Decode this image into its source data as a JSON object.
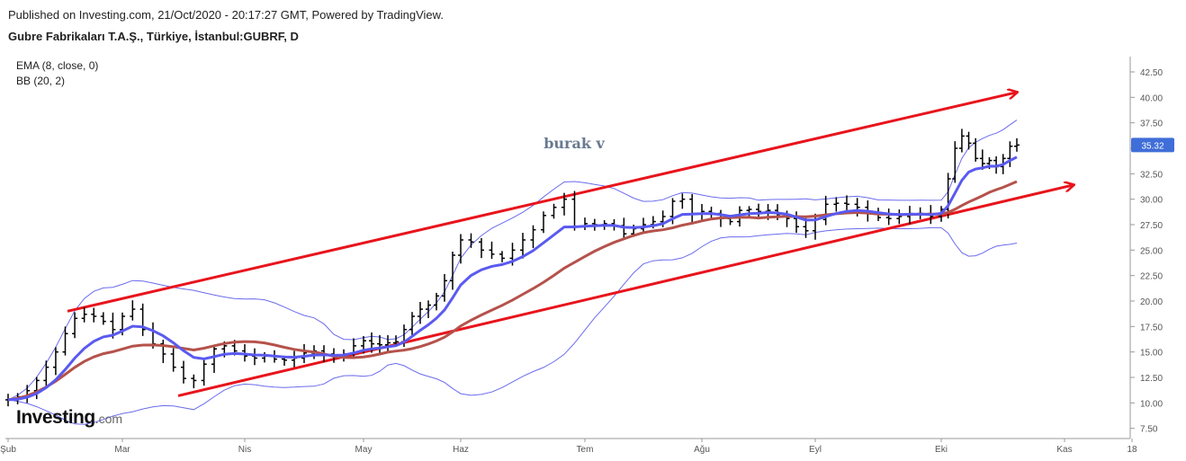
{
  "header": {
    "published": "Published on Investing.com, 21/Oct/2020 - 20:17:27 GMT, Powered by TradingView.",
    "symbol": "Gubre Fabrikaları T.A.Ş., Türkiye, İstanbul:GUBRF, D"
  },
  "indicators": [
    "EMA (8, close, 0)",
    "BB (20, 2)"
  ],
  "logo": {
    "brand": "Investing",
    "domain": ".com"
  },
  "annotation": "burak v",
  "colors": {
    "price": "#000000",
    "ema": "#5a5af0",
    "bb_mid": "#b5524b",
    "bb_band": "#6b6bee",
    "trend": "#e8141c",
    "price_badge": "#3f6ed8",
    "axis_text": "#555555",
    "grid": "#d0d0d0"
  },
  "chart_data": {
    "type": "line",
    "series_kind": "ohlc-daily",
    "y_axis": {
      "ticks": [
        "7.50",
        "10.00",
        "12.50",
        "15.00",
        "17.50",
        "20.00",
        "22.50",
        "25.00",
        "27.50",
        "30.00",
        "32.50",
        "35.00",
        "37.50",
        "40.00",
        "42.50"
      ],
      "ylim": [
        6.5,
        44.0
      ],
      "position": "right"
    },
    "x_axis": {
      "labels": [
        "Şub",
        "Mar",
        "Nis",
        "May",
        "Haz",
        "Tem",
        "Ağu",
        "Eyl",
        "Eki",
        "Kas",
        "18"
      ]
    },
    "last_price": "35.32",
    "series": [
      {
        "name": "Price",
        "points": [
          [
            "Şub",
            10.3
          ],
          [
            "Şub",
            10.6
          ],
          [
            "Şub",
            11.2
          ],
          [
            "Şub",
            12.2
          ],
          [
            "Şub",
            13.5
          ],
          [
            "Şub",
            15.0
          ],
          [
            "Şub",
            16.8
          ],
          [
            "Şub",
            18.3
          ],
          [
            "Şub",
            18.7
          ],
          [
            "Şub",
            18.5
          ],
          [
            "Şub",
            18.0
          ],
          [
            "Şub",
            17.2
          ],
          [
            "Mar",
            18.5
          ],
          [
            "Mar",
            19.2
          ],
          [
            "Mar",
            17.2
          ],
          [
            "Mar",
            15.8
          ],
          [
            "Mar",
            14.8
          ],
          [
            "Mar",
            13.5
          ],
          [
            "Mar",
            12.4
          ],
          [
            "Mar",
            12.2
          ],
          [
            "Mar",
            13.8
          ],
          [
            "Mar",
            15.3
          ],
          [
            "Mar",
            15.6
          ],
          [
            "Mar",
            15.1
          ],
          [
            "Nis",
            14.6
          ],
          [
            "Nis",
            14.4
          ],
          [
            "Nis",
            14.6
          ],
          [
            "Nis",
            14.3
          ],
          [
            "Nis",
            14.2
          ],
          [
            "Nis",
            14.4
          ],
          [
            "Nis",
            14.9
          ],
          [
            "Nis",
            15.1
          ],
          [
            "Nis",
            14.8
          ],
          [
            "Nis",
            14.5
          ],
          [
            "Nis",
            14.8
          ],
          [
            "Nis",
            15.6
          ],
          [
            "May",
            16.1
          ],
          [
            "May",
            15.8
          ],
          [
            "May",
            15.7
          ],
          [
            "May",
            15.9
          ],
          [
            "May",
            16.0
          ],
          [
            "May",
            17.2
          ],
          [
            "May",
            18.5
          ],
          [
            "May",
            19.2
          ],
          [
            "May",
            19.6
          ],
          [
            "May",
            20.5
          ],
          [
            "May",
            22.0
          ],
          [
            "May",
            24.5
          ],
          [
            "Haz",
            26.0
          ],
          [
            "Haz",
            25.8
          ],
          [
            "Haz",
            25.0
          ],
          [
            "Haz",
            24.6
          ],
          [
            "Haz",
            24.2
          ],
          [
            "Haz",
            25.0
          ],
          [
            "Haz",
            26.0
          ],
          [
            "Haz",
            27.0
          ],
          [
            "Haz",
            28.4
          ],
          [
            "Haz",
            29.2
          ],
          [
            "Haz",
            30.0
          ],
          [
            "Haz",
            27.3
          ],
          [
            "Tem",
            27.6
          ],
          [
            "Tem",
            27.5
          ],
          [
            "Tem",
            27.6
          ],
          [
            "Tem",
            27.4
          ],
          [
            "Tem",
            26.6
          ],
          [
            "Tem",
            27.1
          ],
          [
            "Tem",
            27.5
          ],
          [
            "Tem",
            27.8
          ],
          [
            "Tem",
            28.3
          ],
          [
            "Tem",
            29.8
          ],
          [
            "Tem",
            30.0
          ],
          [
            "Tem",
            28.6
          ],
          [
            "Ağu",
            28.8
          ],
          [
            "Ağu",
            28.6
          ],
          [
            "Ağu",
            28.1
          ],
          [
            "Ağu",
            27.8
          ],
          [
            "Ağu",
            28.9
          ],
          [
            "Ağu",
            29.0
          ],
          [
            "Ağu",
            28.8
          ],
          [
            "Ağu",
            28.9
          ],
          [
            "Ağu",
            28.5
          ],
          [
            "Ağu",
            28.1
          ],
          [
            "Ağu",
            27.3
          ],
          [
            "Ağu",
            26.9
          ],
          [
            "Eyl",
            28.0
          ],
          [
            "Eyl",
            29.5
          ],
          [
            "Eyl",
            29.6
          ],
          [
            "Eyl",
            29.5
          ],
          [
            "Eyl",
            29.2
          ],
          [
            "Eyl",
            28.6
          ],
          [
            "Eyl",
            28.2
          ],
          [
            "Eyl",
            28.1
          ],
          [
            "Eyl",
            28.3
          ],
          [
            "Eyl",
            28.6
          ],
          [
            "Eyl",
            28.6
          ],
          [
            "Eyl",
            28.3
          ],
          [
            "Eki",
            29.0
          ],
          [
            "Eki",
            32.0
          ],
          [
            "Eki",
            35.0
          ],
          [
            "Eki",
            36.2
          ],
          [
            "Eki",
            35.5
          ],
          [
            "Eki",
            34.0
          ],
          [
            "Eki",
            33.5
          ],
          [
            "Eki",
            33.8
          ],
          [
            "Eki",
            33.2
          ],
          [
            "Eki",
            34.0
          ],
          [
            "Eki",
            35.2
          ],
          [
            "Eki",
            35.32
          ]
        ]
      }
    ],
    "trendlines": [
      {
        "from": [
          "Şub",
          19.0
        ],
        "to": [
          "Kas",
          40.5
        ],
        "arrow": true
      },
      {
        "from": [
          "Mar",
          10.7
        ],
        "to": [
          "Kas",
          31.4
        ],
        "arrow": true
      }
    ]
  }
}
